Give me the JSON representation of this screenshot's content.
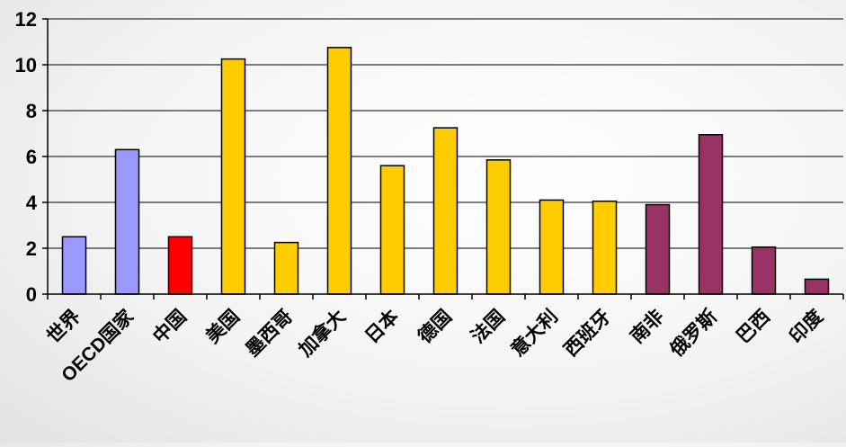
{
  "chart_data": {
    "type": "bar",
    "title": "",
    "xlabel": "",
    "ylabel": "",
    "ylim": [
      0,
      12
    ],
    "yticks": [
      0,
      2,
      4,
      6,
      8,
      10,
      12
    ],
    "grid": true,
    "legend": "none",
    "categories": [
      "世界",
      "OECD国家",
      "中国",
      "美国",
      "墨西哥",
      "加拿大",
      "日本",
      "德国",
      "法国",
      "意大利",
      "西班牙",
      "南非",
      "俄罗斯",
      "巴西",
      "印度"
    ],
    "values": [
      2.5,
      6.3,
      2.5,
      10.25,
      2.25,
      10.75,
      5.6,
      7.25,
      5.85,
      4.1,
      4.05,
      3.9,
      6.95,
      2.05,
      0.65
    ],
    "bar_colors": [
      "#9999ff",
      "#9999ff",
      "#ff0000",
      "#ffcc00",
      "#ffcc00",
      "#ffcc00",
      "#ffcc00",
      "#ffcc00",
      "#ffcc00",
      "#ffcc00",
      "#ffcc00",
      "#993366",
      "#993366",
      "#993366",
      "#993366"
    ]
  }
}
